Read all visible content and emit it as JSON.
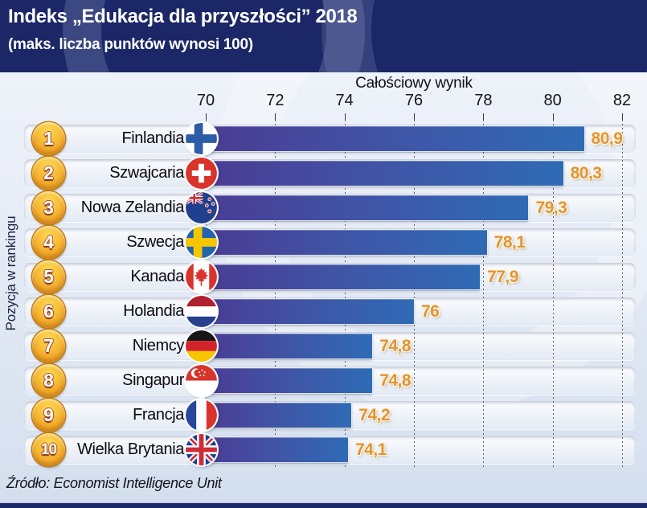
{
  "header": {
    "title": "Indeks „Edukacja dla przyszłości” 2018",
    "subtitle": "(maks. liczba punktów wynosi 100)"
  },
  "source": "Źródło: Economist Intelligence Unit",
  "colors": {
    "header_bg": "#1b2766",
    "bar_start": "#4b3c95",
    "bar_end": "#2f6bb5",
    "value_color": "#e09435",
    "badge_color": "#e8921c"
  },
  "chart_data": {
    "type": "bar",
    "orientation": "horizontal",
    "title": "Indeks „Edukacja dla przyszłości” 2018",
    "subtitle": "(maks. liczba punktów wynosi 100)",
    "xlabel": "Całościowy wynik",
    "ylabel": "Pozycja w rankingu",
    "xlim": [
      70,
      82
    ],
    "xticks": [
      70,
      72,
      74,
      76,
      78,
      80,
      82
    ],
    "grid": "vertical-dashed",
    "source": "Źródło: Economist Intelligence Unit",
    "rows": [
      {
        "rank": 1,
        "country": "Finlandia",
        "flag": "fi",
        "value": 80.9,
        "value_label": "80,9"
      },
      {
        "rank": 2,
        "country": "Szwajcaria",
        "flag": "ch",
        "value": 80.3,
        "value_label": "80,3"
      },
      {
        "rank": 3,
        "country": "Nowa Zelandia",
        "flag": "nz",
        "value": 79.3,
        "value_label": "79,3"
      },
      {
        "rank": 4,
        "country": "Szwecja",
        "flag": "se",
        "value": 78.1,
        "value_label": "78,1"
      },
      {
        "rank": 5,
        "country": "Kanada",
        "flag": "ca",
        "value": 77.9,
        "value_label": "77,9"
      },
      {
        "rank": 6,
        "country": "Holandia",
        "flag": "nl",
        "value": 76.0,
        "value_label": "76"
      },
      {
        "rank": 7,
        "country": "Niemcy",
        "flag": "de",
        "value": 74.8,
        "value_label": "74,8"
      },
      {
        "rank": 8,
        "country": "Singapur",
        "flag": "sg",
        "value": 74.8,
        "value_label": "74,8"
      },
      {
        "rank": 9,
        "country": "Francja",
        "flag": "fr",
        "value": 74.2,
        "value_label": "74,2"
      },
      {
        "rank": 10,
        "country": "Wielka Brytania",
        "flag": "gb",
        "value": 74.1,
        "value_label": "74,1"
      }
    ]
  }
}
